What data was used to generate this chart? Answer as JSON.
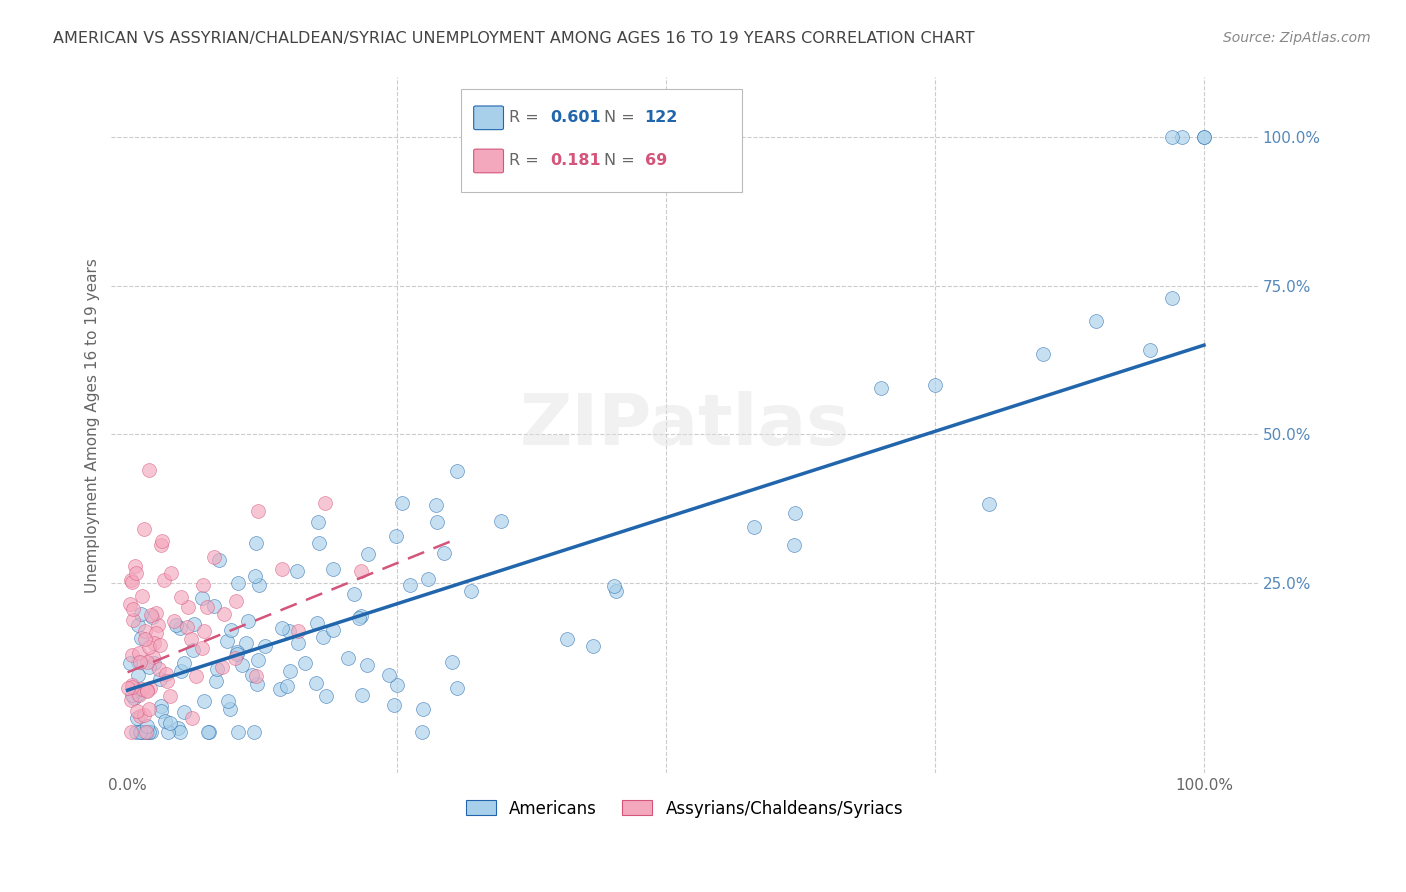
{
  "title": "AMERICAN VS ASSYRIAN/CHALDEAN/SYRIAC UNEMPLOYMENT AMONG AGES 16 TO 19 YEARS CORRELATION CHART",
  "source": "Source: ZipAtlas.com",
  "ylabel": "Unemployment Among Ages 16 to 19 years",
  "legend_label_american": "Americans",
  "legend_label_assyrian": "Assyrians/Chaldeans/Syriacs",
  "R_american": 0.601,
  "N_american": 122,
  "R_assyrian": 0.181,
  "N_assyrian": 69,
  "american_color": "#a8d0ea",
  "assyrian_color": "#f4a8be",
  "american_line_color": "#2166ac",
  "assyrian_line_color": "#d4547a",
  "background_color": "#ffffff",
  "grid_color": "#cccccc",
  "title_color": "#444444",
  "watermark": "ZIPatlas"
}
